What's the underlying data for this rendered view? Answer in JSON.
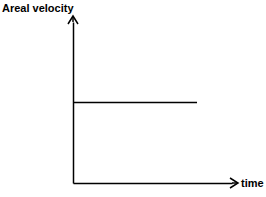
{
  "chart_data": {
    "type": "line",
    "y_label": "Areal velocity",
    "x_label": "time",
    "x": [
      0,
      7.8
    ],
    "values": [
      5,
      5
    ],
    "color": "#000000",
    "xlim": [
      0,
      10
    ],
    "ylim": [
      0,
      10
    ],
    "tick_labels": false
  }
}
